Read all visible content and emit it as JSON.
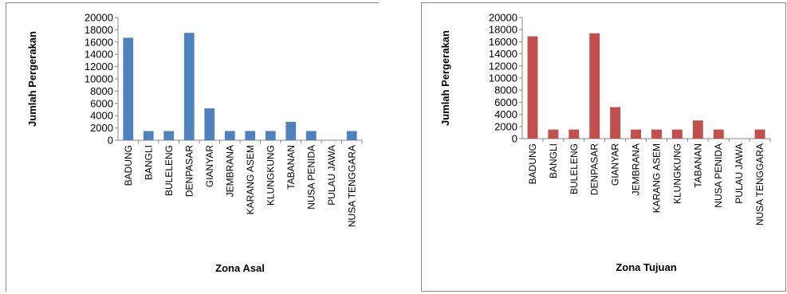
{
  "chart_data": [
    {
      "type": "bar",
      "categories": [
        "BADUNG",
        "BANGLI",
        "BULELENG",
        "DENPASAR",
        "GIANYAR",
        "JEMBRANA",
        "KARANG ASEM",
        "KLUNGKUNG",
        "TABANAN",
        "NUSA PENIDA",
        "PULAU JAWA",
        "NUSA TENGGARA"
      ],
      "values": [
        16700,
        1500,
        1500,
        17500,
        5200,
        1500,
        1500,
        1500,
        3000,
        1500,
        0,
        1500
      ],
      "xlabel": "Zona Asal",
      "ylabel": "Jumlah Pergerakan",
      "ylim": [
        0,
        20000
      ],
      "yticks": [
        "0",
        "2000",
        "4000",
        "6000",
        "8000",
        "10000",
        "12000",
        "14000",
        "16000",
        "18000",
        "20000"
      ],
      "color": "#4f81bd",
      "grid": false,
      "legend": "none"
    },
    {
      "type": "bar",
      "categories": [
        "BADUNG",
        "BANGLI",
        "BULELENG",
        "DENPASAR",
        "GIANYAR",
        "JEMBRANA",
        "KARANG ASEM",
        "KLUNGKUNG",
        "TABANAN",
        "NUSA PENIDA",
        "PULAU JAWA",
        "NUSA TENGGARA"
      ],
      "values": [
        16900,
        1500,
        1500,
        17400,
        5200,
        1500,
        1500,
        1500,
        3000,
        1500,
        0,
        1500
      ],
      "xlabel": "Zona Tujuan",
      "ylabel": "Jumlah Pergerakan",
      "ylim": [
        0,
        20000
      ],
      "yticks": [
        "0",
        "2000",
        "4000",
        "6000",
        "8000",
        "10000",
        "12000",
        "14000",
        "16000",
        "18000",
        "20000"
      ],
      "color": "#c0504d",
      "grid": false,
      "legend": "none"
    }
  ]
}
